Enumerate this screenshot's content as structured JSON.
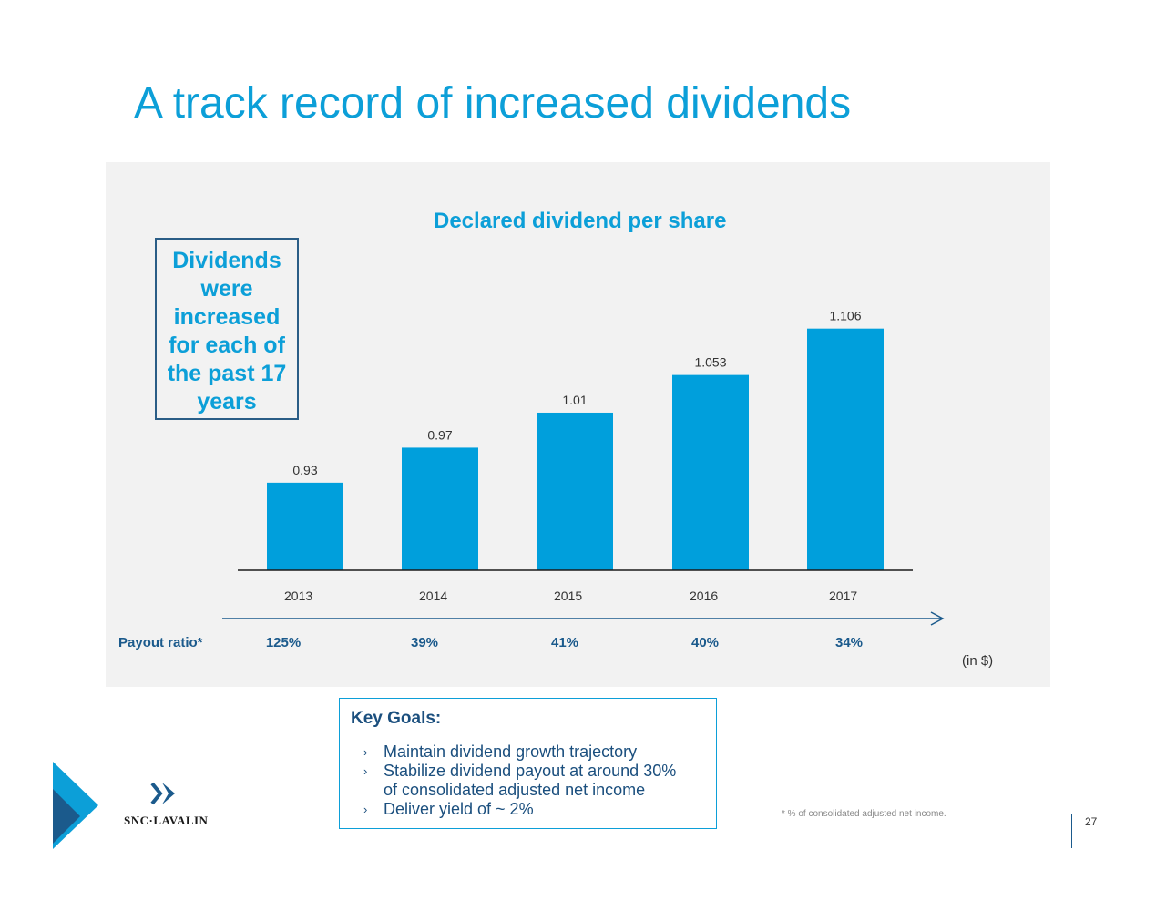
{
  "slide": {
    "title": "A track record of increased dividends",
    "callout": "Dividends\nwere\nincreased\nfor each of\nthe past 17\nyears",
    "payout_label": "Payout ratio*",
    "units": "(in $)",
    "footnote": "* % of consolidated adjusted net income.",
    "page_number": "27"
  },
  "goals": {
    "title": "Key Goals:",
    "bullet_glyph": "›",
    "items": [
      "Maintain dividend growth trajectory",
      "Stabilize dividend payout at around 30%\nof consolidated adjusted net income",
      "Deliver yield of ~ 2%"
    ]
  },
  "logo": {
    "text": "SNC·LAVALIN"
  },
  "colors": {
    "accent": "#0c9fd8",
    "bar": "#009fdc",
    "dark_blue": "#1b5a8c",
    "panel": "#f2f2f2"
  },
  "chart_data": {
    "type": "bar",
    "title": "Declared dividend per share",
    "categories": [
      "2013",
      "2014",
      "2015",
      "2016",
      "2017"
    ],
    "values": [
      0.93,
      0.97,
      1.01,
      1.053,
      1.106
    ],
    "value_labels": [
      "0.93",
      "0.97",
      "1.01",
      "1.053",
      "1.106"
    ],
    "payout_ratio": [
      "125%",
      "39%",
      "41%",
      "40%",
      "34%"
    ],
    "ylim": [
      0.83,
      1.14
    ],
    "grid": false,
    "xlabel": "",
    "ylabel": ""
  }
}
